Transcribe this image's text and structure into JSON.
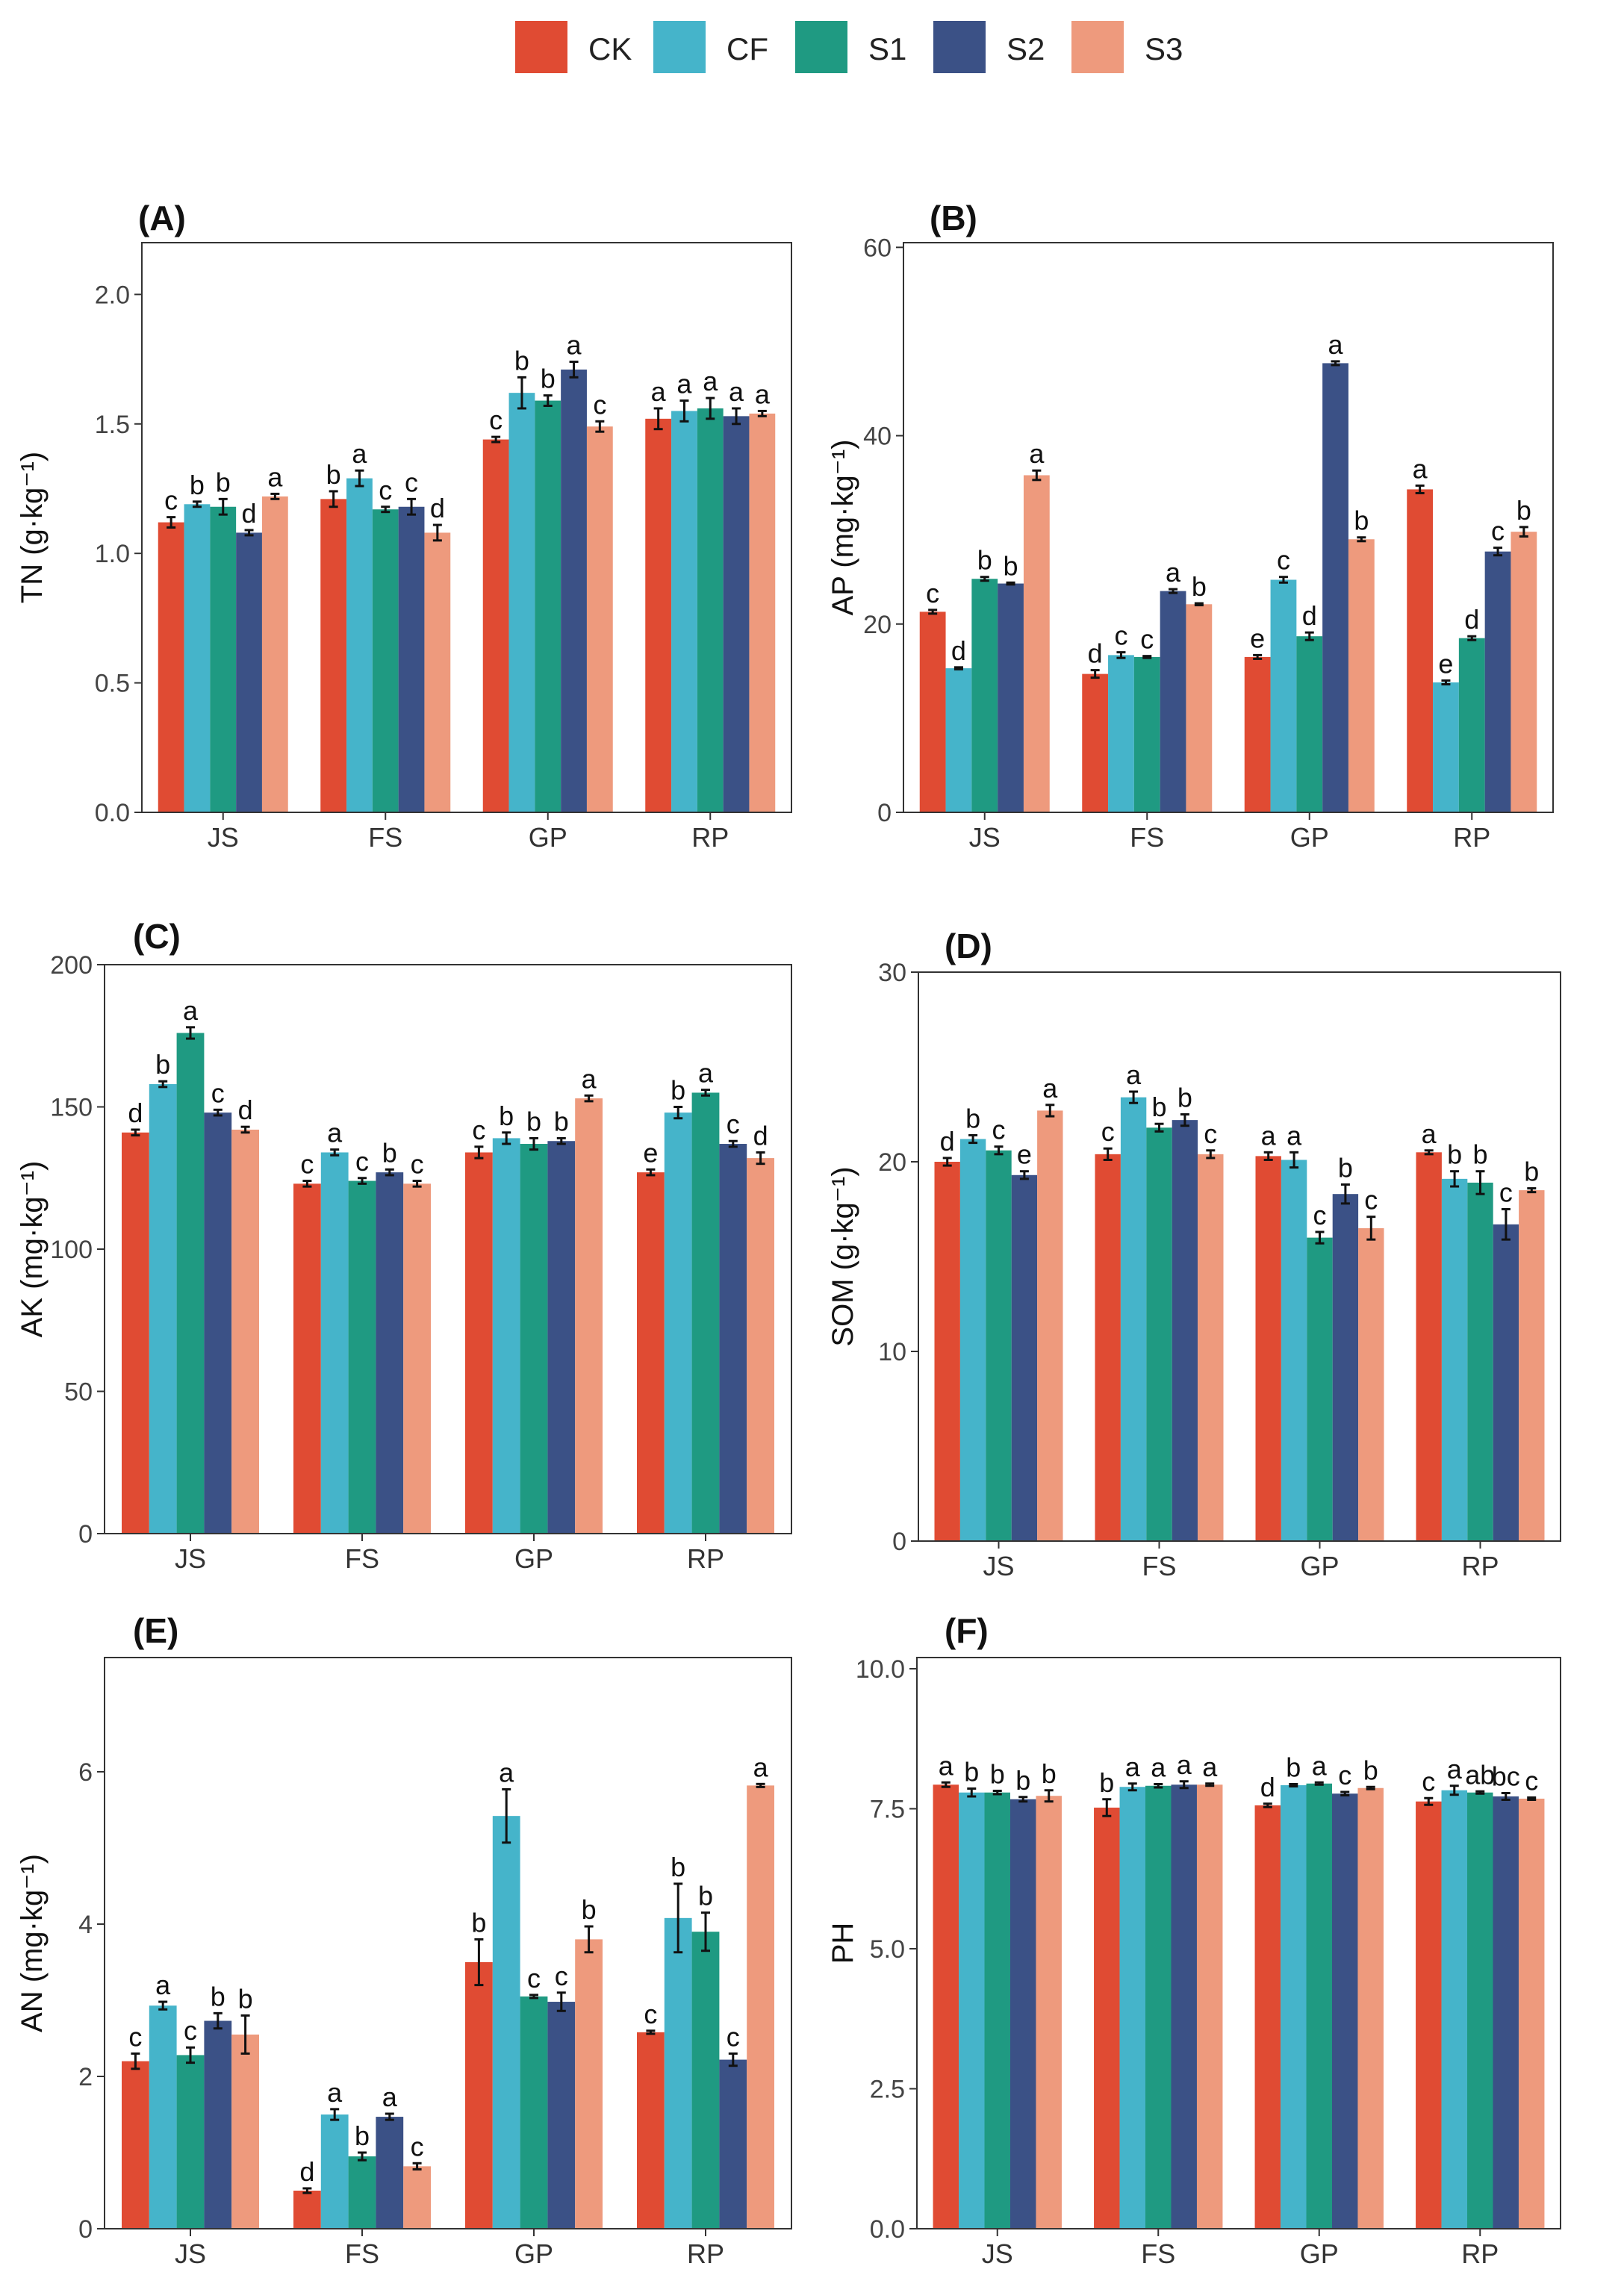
{
  "colors": {
    "CK": "#E04B33",
    "CF": "#45B4CA",
    "S1": "#1F9A82",
    "S2": "#3B5186",
    "S3": "#EE9A7D"
  },
  "legend": [
    "CK",
    "CF",
    "S1",
    "S2",
    "S3"
  ],
  "chart_data": [
    {
      "panel": "(A)",
      "type": "bar",
      "ylabel": "TN (g·kg⁻¹)",
      "ylim": [
        0,
        2.2
      ],
      "yticks": [
        0.0,
        0.5,
        1.0,
        1.5,
        2.0
      ],
      "tick_labels": [
        "0.0",
        "0.5",
        "1.0",
        "1.5",
        "2.0"
      ],
      "categories": [
        "JS",
        "FS",
        "GP",
        "RP"
      ],
      "series": [
        {
          "name": "CK",
          "values": [
            1.12,
            1.21,
            1.44,
            1.52
          ],
          "errors": [
            0.02,
            0.03,
            0.01,
            0.04
          ],
          "letters": [
            "c",
            "b",
            "c",
            "a"
          ]
        },
        {
          "name": "CF",
          "values": [
            1.19,
            1.29,
            1.62,
            1.55
          ],
          "errors": [
            0.01,
            0.03,
            0.06,
            0.04
          ],
          "letters": [
            "b",
            "a",
            "b",
            "a"
          ]
        },
        {
          "name": "S1",
          "values": [
            1.18,
            1.17,
            1.59,
            1.56
          ],
          "errors": [
            0.03,
            0.01,
            0.02,
            0.04
          ],
          "letters": [
            "b",
            "c",
            "b",
            "a"
          ]
        },
        {
          "name": "S2",
          "values": [
            1.08,
            1.18,
            1.71,
            1.53
          ],
          "errors": [
            0.01,
            0.03,
            0.03,
            0.03
          ],
          "letters": [
            "d",
            "c",
            "a",
            "a"
          ]
        },
        {
          "name": "S3",
          "values": [
            1.22,
            1.08,
            1.49,
            1.54
          ],
          "errors": [
            0.01,
            0.03,
            0.02,
            0.01
          ],
          "letters": [
            "a",
            "d",
            "c",
            "a"
          ]
        }
      ]
    },
    {
      "panel": "(B)",
      "type": "bar",
      "ylabel": "AP (mg·kg⁻¹)",
      "ylim": [
        0,
        60.5
      ],
      "yticks": [
        0,
        20,
        40,
        60
      ],
      "tick_labels": [
        "0",
        "20",
        "40",
        "60"
      ],
      "categories": [
        "JS",
        "FS",
        "GP",
        "RP"
      ],
      "series": [
        {
          "name": "CK",
          "values": [
            21.3,
            14.7,
            16.5,
            34.3
          ],
          "errors": [
            0.2,
            0.4,
            0.2,
            0.4
          ],
          "letters": [
            "c",
            "d",
            "e",
            "a"
          ]
        },
        {
          "name": "CF",
          "values": [
            15.3,
            16.7,
            24.7,
            13.8
          ],
          "errors": [
            0.1,
            0.3,
            0.3,
            0.2
          ],
          "letters": [
            "d",
            "c",
            "c",
            "e"
          ]
        },
        {
          "name": "S1",
          "values": [
            24.8,
            16.5,
            18.7,
            18.5
          ],
          "errors": [
            0.2,
            0.1,
            0.4,
            0.2
          ],
          "letters": [
            "b",
            "c",
            "d",
            "d"
          ]
        },
        {
          "name": "S2",
          "values": [
            24.3,
            23.5,
            47.7,
            27.7
          ],
          "errors": [
            0.1,
            0.2,
            0.2,
            0.4
          ],
          "letters": [
            "b",
            "a",
            "a",
            "c"
          ]
        },
        {
          "name": "S3",
          "values": [
            35.8,
            22.1,
            29.0,
            29.8
          ],
          "errors": [
            0.5,
            0.1,
            0.2,
            0.5
          ],
          "letters": [
            "a",
            "b",
            "b",
            "b"
          ]
        }
      ]
    },
    {
      "panel": "(C)",
      "type": "bar",
      "ylabel": "AK (mg·kg⁻¹)",
      "ylim": [
        0,
        200
      ],
      "yticks": [
        0,
        50,
        100,
        150,
        200
      ],
      "tick_labels": [
        "0",
        "50",
        "100",
        "150",
        "200"
      ],
      "categories": [
        "JS",
        "FS",
        "GP",
        "RP"
      ],
      "series": [
        {
          "name": "CK",
          "values": [
            141,
            123,
            134,
            127
          ],
          "errors": [
            1,
            1,
            2,
            1
          ],
          "letters": [
            "d",
            "c",
            "c",
            "e"
          ]
        },
        {
          "name": "CF",
          "values": [
            158,
            134,
            139,
            148
          ],
          "errors": [
            1,
            1,
            2,
            2
          ],
          "letters": [
            "b",
            "a",
            "b",
            "b"
          ]
        },
        {
          "name": "S1",
          "values": [
            176,
            124,
            137,
            155
          ],
          "errors": [
            2,
            1,
            2,
            1
          ],
          "letters": [
            "a",
            "c",
            "b",
            "a"
          ]
        },
        {
          "name": "S2",
          "values": [
            148,
            127,
            138,
            137
          ],
          "errors": [
            1,
            1,
            1,
            1
          ],
          "letters": [
            "c",
            "b",
            "b",
            "c"
          ]
        },
        {
          "name": "S3",
          "values": [
            142,
            123,
            153,
            132
          ],
          "errors": [
            1,
            1,
            1,
            2
          ],
          "letters": [
            "d",
            "c",
            "a",
            "d"
          ]
        }
      ]
    },
    {
      "panel": "(D)",
      "type": "bar",
      "ylabel": "SOM (g·kg⁻¹)",
      "ylim": [
        0,
        30
      ],
      "yticks": [
        0,
        10,
        20,
        30
      ],
      "tick_labels": [
        "0",
        "10",
        "20",
        "30"
      ],
      "categories": [
        "JS",
        "FS",
        "GP",
        "RP"
      ],
      "series": [
        {
          "name": "CK",
          "values": [
            20.0,
            20.4,
            20.3,
            20.5
          ],
          "errors": [
            0.2,
            0.3,
            0.2,
            0.1
          ],
          "letters": [
            "d",
            "c",
            "a",
            "a"
          ]
        },
        {
          "name": "CF",
          "values": [
            21.2,
            23.4,
            20.1,
            19.1
          ],
          "errors": [
            0.2,
            0.3,
            0.4,
            0.4
          ],
          "letters": [
            "b",
            "a",
            "a",
            "b"
          ]
        },
        {
          "name": "S1",
          "values": [
            20.6,
            21.8,
            16.0,
            18.9
          ],
          "errors": [
            0.2,
            0.2,
            0.3,
            0.6
          ],
          "letters": [
            "c",
            "b",
            "c",
            "b"
          ]
        },
        {
          "name": "S2",
          "values": [
            19.3,
            22.2,
            18.3,
            16.7
          ],
          "errors": [
            0.2,
            0.3,
            0.5,
            0.8
          ],
          "letters": [
            "e",
            "b",
            "b",
            "c"
          ]
        },
        {
          "name": "S3",
          "values": [
            22.7,
            20.4,
            16.5,
            18.5
          ],
          "errors": [
            0.3,
            0.2,
            0.6,
            0.1
          ],
          "letters": [
            "a",
            "c",
            "c",
            "b"
          ]
        }
      ]
    },
    {
      "panel": "(E)",
      "type": "bar",
      "ylabel": "AN (mg·kg⁻¹)",
      "ylim": [
        0,
        7.5
      ],
      "yticks": [
        0,
        2,
        4,
        6
      ],
      "tick_labels": [
        "0",
        "2",
        "4",
        "6"
      ],
      "categories": [
        "JS",
        "FS",
        "GP",
        "RP"
      ],
      "series": [
        {
          "name": "CK",
          "values": [
            2.2,
            0.5,
            3.5,
            2.58
          ],
          "errors": [
            0.1,
            0.03,
            0.3,
            0.02
          ],
          "letters": [
            "c",
            "d",
            "b",
            "c"
          ]
        },
        {
          "name": "CF",
          "values": [
            2.93,
            1.5,
            5.42,
            4.08
          ],
          "errors": [
            0.05,
            0.07,
            0.35,
            0.45
          ],
          "letters": [
            "a",
            "a",
            "a",
            "b"
          ]
        },
        {
          "name": "S1",
          "values": [
            2.28,
            0.95,
            3.05,
            3.9
          ],
          "errors": [
            0.1,
            0.05,
            0.02,
            0.25
          ],
          "letters": [
            "c",
            "b",
            "c",
            "b"
          ]
        },
        {
          "name": "S2",
          "values": [
            2.73,
            1.47,
            2.98,
            2.22
          ],
          "errors": [
            0.1,
            0.04,
            0.12,
            0.08
          ],
          "letters": [
            "b",
            "a",
            "c",
            "c"
          ]
        },
        {
          "name": "S3",
          "values": [
            2.55,
            0.82,
            3.8,
            5.82
          ],
          "errors": [
            0.25,
            0.04,
            0.17,
            0.02
          ],
          "letters": [
            "b",
            "c",
            "b",
            "a"
          ]
        }
      ]
    },
    {
      "panel": "(F)",
      "type": "bar",
      "ylabel": "PH",
      "ylim": [
        0,
        10.2
      ],
      "yticks": [
        0,
        2.5,
        5,
        7.5,
        10
      ],
      "tick_labels": [
        "0.0",
        "2.5",
        "5.0",
        "7.5",
        "10.0"
      ],
      "categories": [
        "JS",
        "FS",
        "GP",
        "RP"
      ],
      "series": [
        {
          "name": "CK",
          "values": [
            7.93,
            7.52,
            7.56,
            7.63
          ],
          "errors": [
            0.04,
            0.15,
            0.03,
            0.06
          ],
          "letters": [
            "a",
            "b",
            "d",
            "c"
          ]
        },
        {
          "name": "CF",
          "values": [
            7.79,
            7.89,
            7.92,
            7.83
          ],
          "errors": [
            0.07,
            0.06,
            0.02,
            0.08
          ],
          "letters": [
            "b",
            "a",
            "b",
            "a"
          ]
        },
        {
          "name": "S1",
          "values": [
            7.79,
            7.91,
            7.95,
            7.79
          ],
          "errors": [
            0.03,
            0.03,
            0.02,
            0.02
          ],
          "letters": [
            "b",
            "a",
            "a",
            "ab"
          ]
        },
        {
          "name": "S2",
          "values": [
            7.67,
            7.93,
            7.77,
            7.72
          ],
          "errors": [
            0.04,
            0.06,
            0.03,
            0.06
          ],
          "letters": [
            "b",
            "a",
            "c",
            "bc"
          ]
        },
        {
          "name": "S3",
          "values": [
            7.73,
            7.93,
            7.87,
            7.68
          ],
          "errors": [
            0.1,
            0.02,
            0.02,
            0.02
          ],
          "letters": [
            "b",
            "a",
            "b",
            "c"
          ]
        }
      ]
    }
  ]
}
